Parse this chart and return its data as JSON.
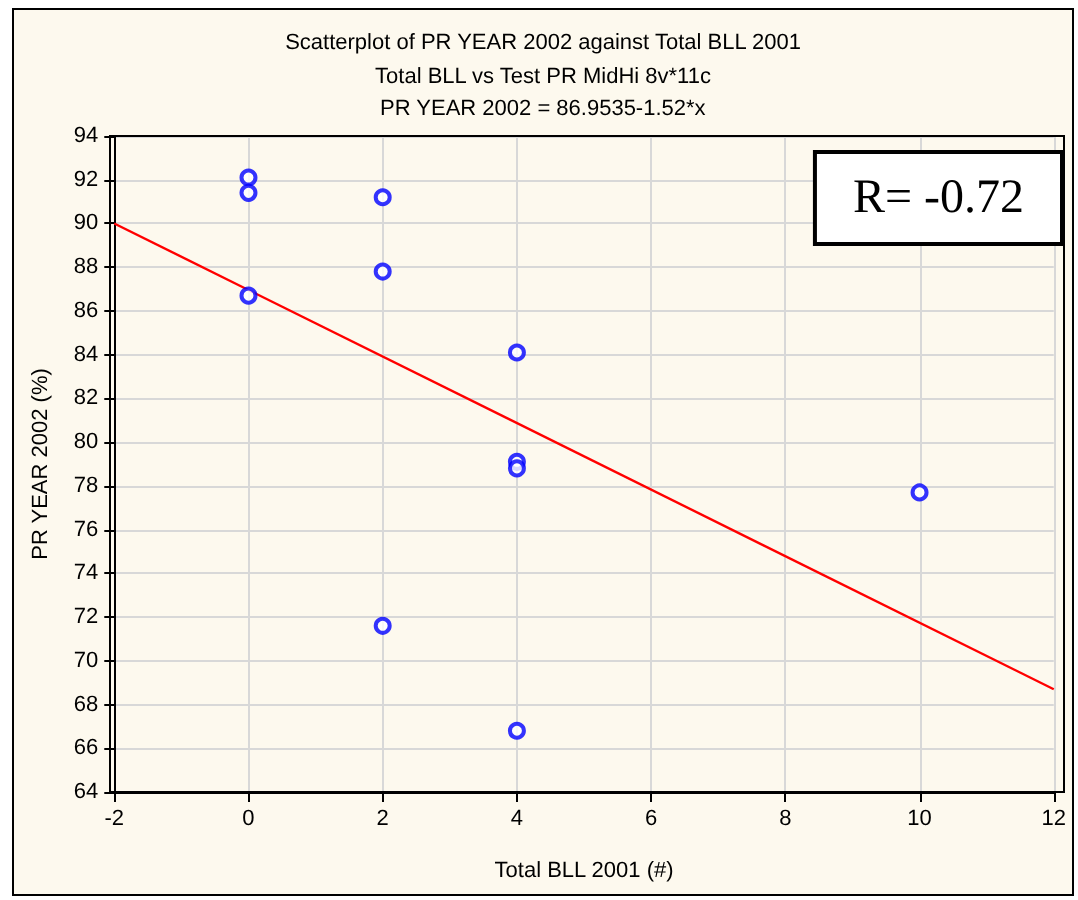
{
  "chart_data": {
    "type": "scatter",
    "title": "Scatterplot of PR YEAR 2002 against Total BLL 2001",
    "subtitle": "Total BLL vs Test PR MidHi 8v*11c",
    "xlabel": "Total BLL 2001 (#)",
    "ylabel": "PR YEAR 2002 (%)",
    "annotations": [
      "PR YEAR 2002 = 86.9535-1.52*x",
      "R= -0.72"
    ],
    "series": [
      {
        "color": "#0000ff",
        "marker": "circle",
        "x": [
          0,
          0,
          0,
          2,
          2,
          2,
          4,
          4,
          4,
          4,
          10
        ],
        "values": [
          92.1,
          91.4,
          86.7,
          91.2,
          87.8,
          71.6,
          84.1,
          79.1,
          78.8,
          66.8,
          77.7
        ]
      },
      {
        "type": "line",
        "color": "#ff0000",
        "marker": "none",
        "x": [
          -2,
          12
        ],
        "values": [
          90.0,
          68.7
        ]
      }
    ],
    "xlim": [
      -2,
      12
    ],
    "xticks": [
      -2,
      0,
      2,
      4,
      6,
      8,
      10,
      12
    ],
    "ylim": [
      64,
      94
    ],
    "yticks": [
      64,
      66,
      68,
      70,
      72,
      74,
      76,
      78,
      80,
      82,
      84,
      86,
      88,
      90,
      92,
      94
    ],
    "grid": true
  }
}
